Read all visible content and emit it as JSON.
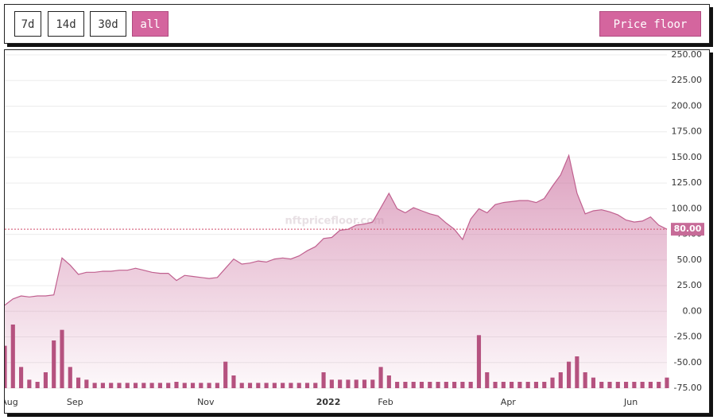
{
  "buttons": [
    "7d",
    "14d",
    "30d",
    "all"
  ],
  "active_button": "all",
  "metric_button": "Price floor",
  "chart_data": {
    "type": "area",
    "watermark": "nftpricefloor.com",
    "categories": [
      "Aug",
      null,
      null,
      null,
      null,
      null,
      null,
      null,
      "Sep",
      null,
      null,
      null,
      null,
      null,
      null,
      null,
      null,
      null,
      null,
      null,
      null,
      null,
      null,
      null,
      "Nov",
      null,
      null,
      null,
      null,
      null,
      null,
      null,
      null,
      null,
      null,
      null,
      null,
      null,
      null,
      "2022",
      null,
      null,
      null,
      null,
      null,
      null,
      "Feb",
      null,
      null,
      null,
      null,
      null,
      null,
      null,
      null,
      null,
      null,
      null,
      null,
      null,
      null,
      "Apr",
      null,
      null,
      null,
      null,
      null,
      null,
      null,
      null,
      null,
      null,
      null,
      null,
      null,
      null,
      "Jun",
      null,
      null,
      null,
      null,
      null
    ],
    "values": [
      6,
      12,
      15,
      14,
      15,
      15,
      16,
      52,
      45,
      36,
      38,
      38,
      39,
      39,
      40,
      40,
      42,
      40,
      38,
      37,
      37,
      30,
      35,
      34,
      33,
      32,
      33,
      42,
      51,
      46,
      47,
      49,
      48,
      51,
      52,
      51,
      54,
      59,
      63,
      71,
      72,
      79,
      80,
      84,
      85,
      87,
      101,
      115,
      100,
      96,
      101,
      98,
      95,
      93,
      86,
      80,
      70,
      90,
      100,
      96,
      104,
      106,
      107,
      108,
      108,
      106,
      110,
      122,
      133,
      152,
      115,
      95,
      98,
      99,
      97,
      94,
      89,
      87,
      88,
      92,
      84,
      80
    ],
    "volume": [
      40,
      60,
      20,
      8,
      6,
      15,
      45,
      55,
      20,
      10,
      8,
      5,
      5,
      5,
      5,
      5,
      5,
      5,
      5,
      5,
      5,
      6,
      5,
      5,
      5,
      5,
      5,
      25,
      12,
      5,
      5,
      5,
      5,
      5,
      5,
      5,
      5,
      5,
      5,
      15,
      8,
      8,
      8,
      8,
      8,
      8,
      20,
      12,
      6,
      6,
      6,
      6,
      6,
      6,
      6,
      6,
      6,
      6,
      50,
      15,
      6,
      6,
      6,
      6,
      6,
      6,
      6,
      10,
      15,
      25,
      30,
      15,
      10,
      6,
      6,
      6,
      6,
      6,
      6,
      6,
      6,
      10
    ],
    "color": "#c0608f",
    "volume_color": "#b5527f",
    "current_price": {
      "value": 80,
      "label": "80.00"
    },
    "current_color": "#d14a6a",
    "ylim": [
      -75,
      250
    ],
    "yticks": [
      {
        "value": 250,
        "label": "250.00"
      },
      {
        "value": 225,
        "label": "225.00"
      },
      {
        "value": 200,
        "label": "200.00"
      },
      {
        "value": 175,
        "label": "175.00"
      },
      {
        "value": 150,
        "label": "150.00"
      },
      {
        "value": 125,
        "label": "125.00"
      },
      {
        "value": 100,
        "label": "100.00"
      },
      {
        "value": 75,
        "label": "75.00"
      },
      {
        "value": 50,
        "label": "50.00"
      },
      {
        "value": 25,
        "label": "25.00"
      },
      {
        "value": 0,
        "label": "0.00"
      },
      {
        "value": -25,
        "label": "-25.00"
      },
      {
        "value": -50,
        "label": "-50.00"
      },
      {
        "value": -75,
        "label": "-75.00"
      }
    ],
    "grid": true
  }
}
